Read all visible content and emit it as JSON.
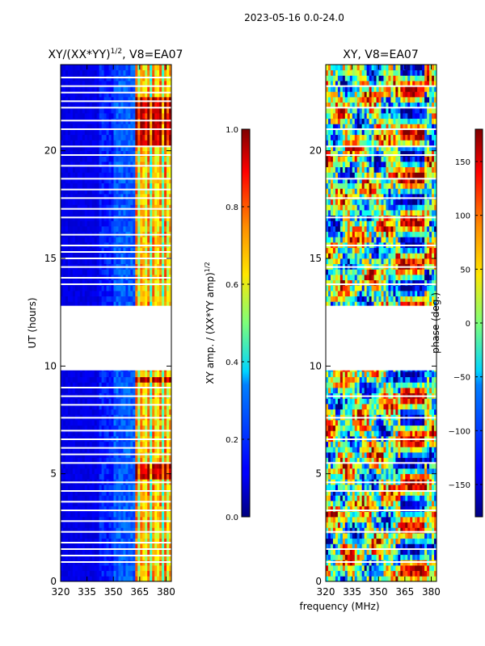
{
  "figure": {
    "suptitle": "2023-05-16 0.0-24.0",
    "shared_xlabel": "frequency (MHz)"
  },
  "chart_data": [
    {
      "type": "heatmap",
      "title_main": "XY/(XX*YY)",
      "title_exp": "1/2",
      "title_suffix": ", V8=EA07",
      "ylabel": "UT (hours)",
      "xlim": [
        320,
        383
      ],
      "ylim": [
        0,
        24
      ],
      "xticks": [
        320,
        335,
        350,
        365,
        380
      ],
      "yticks": [
        0,
        5,
        10,
        15,
        20
      ],
      "gap_range": [
        9.8,
        12.8
      ],
      "blank_rows": [
        0.9,
        1.2,
        1.5,
        1.8,
        2.3,
        2.8,
        3.3,
        3.7,
        4.2,
        4.6,
        5.5,
        5.9,
        6.2,
        6.6,
        7.0,
        7.6,
        8.2,
        8.6,
        9.0,
        13.8,
        14.1,
        14.6,
        15.0,
        15.3,
        15.6,
        16.1,
        16.9,
        17.3,
        17.8,
        18.2,
        18.7,
        19.3,
        19.8,
        20.2,
        21.0,
        21.4,
        22.0,
        22.3,
        22.7,
        23.0,
        23.4
      ],
      "colorbar": {
        "label_main": "XY amp. / (XX*YY amp)",
        "label_exp": "1/2",
        "range": [
          0.0,
          1.0
        ],
        "ticks": [
          "0.0",
          "0.2",
          "0.4",
          "0.6",
          "0.8",
          "1.0"
        ],
        "tick_values": [
          0.0,
          0.2,
          0.4,
          0.6,
          0.8,
          1.0
        ]
      }
    },
    {
      "type": "heatmap",
      "title_main": "XY, V8=EA07",
      "xlim": [
        320,
        383
      ],
      "ylim": [
        0,
        24
      ],
      "xticks": [
        320,
        335,
        350,
        365,
        380
      ],
      "yticks": [
        0,
        5,
        10,
        15,
        20
      ],
      "gap_range": [
        9.8,
        12.8
      ],
      "blank_rows": [
        0.9,
        1.5,
        2.3,
        3.3,
        4.2,
        4.6,
        5.5,
        6.6,
        7.6,
        8.6,
        13.8,
        14.6,
        15.6,
        16.9,
        17.8,
        18.7,
        19.8,
        20.2,
        21.0,
        22.0,
        23.0
      ],
      "colorbar": {
        "label_main": "phase (deg.)",
        "range": [
          -180,
          180
        ],
        "ticks": [
          "−150",
          "−100",
          "−50",
          "0",
          "50",
          "100",
          "150"
        ],
        "tick_values": [
          -150,
          -100,
          -50,
          0,
          50,
          100,
          150
        ]
      }
    }
  ]
}
